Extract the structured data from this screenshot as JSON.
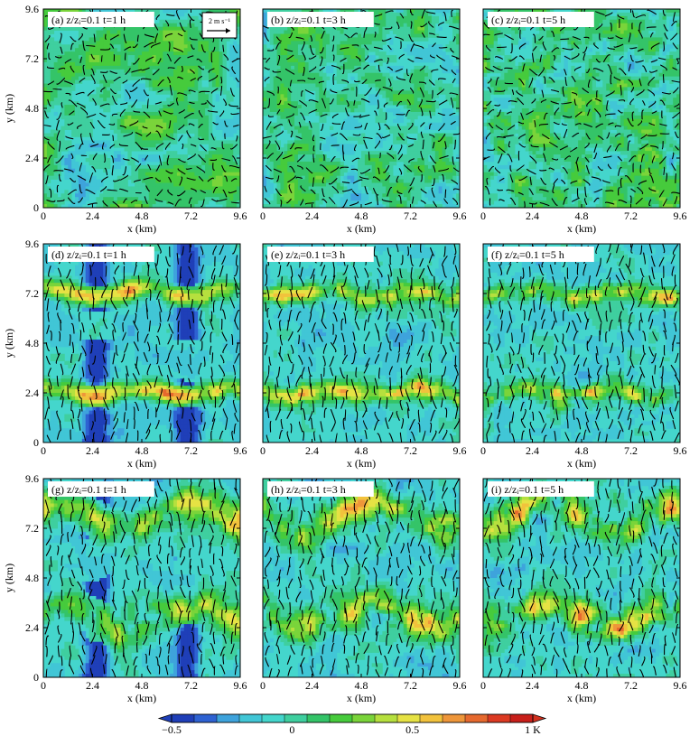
{
  "chart_data": [
    {
      "type": "heatmap",
      "panel_id": "(a)",
      "height_label": "z/zᵢ=0.1",
      "time_label": "t=1 h",
      "case": "uniform",
      "frame": 1,
      "xlabel": "x (km)",
      "ylabel": "y (km)",
      "xlim": [
        0,
        9.6
      ],
      "ylim": [
        0,
        9.6
      ],
      "xticks": [
        "0",
        "2.4",
        "4.8",
        "7.2",
        "9.6"
      ],
      "yticks": [
        "0",
        "2.4",
        "4.8",
        "7.2",
        "9.6"
      ],
      "reference_vector": "2 m s⁻¹"
    },
    {
      "type": "heatmap",
      "panel_id": "(b)",
      "height_label": "z/zᵢ=0.1",
      "time_label": "t=3 h",
      "case": "uniform",
      "frame": 3,
      "xlabel": "x (km)",
      "xlim": [
        0,
        9.6
      ],
      "ylim": [
        0,
        9.6
      ],
      "xticks": [
        "0",
        "2.4",
        "4.8",
        "7.2",
        "9.6"
      ]
    },
    {
      "type": "heatmap",
      "panel_id": "(c)",
      "height_label": "z/zᵢ=0.1",
      "time_label": "t=5 h",
      "case": "uniform",
      "frame": 5,
      "xlabel": "x (km)",
      "xlim": [
        0,
        9.6
      ],
      "ylim": [
        0,
        9.6
      ],
      "xticks": [
        "0",
        "2.4",
        "4.8",
        "7.2",
        "9.6"
      ]
    },
    {
      "type": "heatmap",
      "panel_id": "(d)",
      "height_label": "z/zᵢ=0.1",
      "time_label": "t=1 h",
      "case": "strong_bands",
      "frame": 1,
      "xlabel": "x (km)",
      "ylabel": "y (km)",
      "xlim": [
        0,
        9.6
      ],
      "ylim": [
        0,
        9.6
      ],
      "xticks": [
        "0",
        "2.4",
        "4.8",
        "7.2",
        "9.6"
      ],
      "yticks": [
        "0",
        "2.4",
        "4.8",
        "7.2",
        "9.6"
      ],
      "convergence_lines_y": [
        2.4,
        7.2
      ]
    },
    {
      "type": "heatmap",
      "panel_id": "(e)",
      "height_label": "z/zᵢ=0.1",
      "time_label": "t=3 h",
      "case": "strong_bands",
      "frame": 3,
      "xlabel": "x (km)",
      "xlim": [
        0,
        9.6
      ],
      "ylim": [
        0,
        9.6
      ],
      "xticks": [
        "0",
        "2.4",
        "4.8",
        "7.2",
        "9.6"
      ],
      "convergence_lines_y": [
        2.4,
        7.2
      ]
    },
    {
      "type": "heatmap",
      "panel_id": "(f)",
      "height_label": "z/zᵢ=0.1",
      "time_label": "t=5 h",
      "case": "strong_bands",
      "frame": 5,
      "xlabel": "x (km)",
      "xlim": [
        0,
        9.6
      ],
      "ylim": [
        0,
        9.6
      ],
      "xticks": [
        "0",
        "2.4",
        "4.8",
        "7.2",
        "9.6"
      ],
      "convergence_lines_y": [
        2.4,
        7.2
      ]
    },
    {
      "type": "heatmap",
      "panel_id": "(g)",
      "height_label": "z/zᵢ=0.1",
      "time_label": "t=1 h",
      "case": "weak_bands",
      "frame": 1,
      "xlabel": "x (km)",
      "ylabel": "y (km)",
      "xlim": [
        0,
        9.6
      ],
      "ylim": [
        0,
        9.6
      ],
      "xticks": [
        "0",
        "2.4",
        "4.8",
        "7.2",
        "9.6"
      ],
      "yticks": [
        "0",
        "2.4",
        "4.8",
        "7.2",
        "9.6"
      ],
      "convergence_lines_y": [
        3.0,
        7.8
      ]
    },
    {
      "type": "heatmap",
      "panel_id": "(h)",
      "height_label": "z/zᵢ=0.1",
      "time_label": "t=3 h",
      "case": "weak_bands",
      "frame": 3,
      "xlabel": "x (km)",
      "xlim": [
        0,
        9.6
      ],
      "ylim": [
        0,
        9.6
      ],
      "xticks": [
        "0",
        "2.4",
        "4.8",
        "7.2",
        "9.6"
      ],
      "convergence_lines_y": [
        3.0,
        7.8
      ]
    },
    {
      "type": "heatmap",
      "panel_id": "(i)",
      "height_label": "z/zᵢ=0.1",
      "time_label": "t=5 h",
      "case": "weak_bands",
      "frame": 5,
      "xlabel": "x (km)",
      "xlim": [
        0,
        9.6
      ],
      "ylim": [
        0,
        9.6
      ],
      "xticks": [
        "0",
        "2.4",
        "4.8",
        "7.2",
        "9.6"
      ],
      "convergence_lines_y": [
        3.0,
        7.8
      ]
    }
  ],
  "colorbar": {
    "range": [
      -0.5,
      1.0
    ],
    "unit": "K",
    "labels": [
      {
        "value": -0.5,
        "text": "−0.5"
      },
      {
        "value": 0,
        "text": "0"
      },
      {
        "value": 0.5,
        "text": "0.5"
      },
      {
        "value": 1.0,
        "text": "1 K"
      }
    ],
    "colors": [
      "#1f3fb8",
      "#2e62d2",
      "#3ea3dc",
      "#41c6d6",
      "#44d6cc",
      "#3fcf9f",
      "#34c468",
      "#46cb3c",
      "#7ad43a",
      "#b6e03e",
      "#e6e244",
      "#f2c23c",
      "#ee963a",
      "#e6692e",
      "#dc3a22",
      "#c81f1a"
    ],
    "extend_min_color": "#1f3fb8",
    "extend_max_color": "#d2301e"
  },
  "colors": {
    "background": "#ffffff",
    "vector": "#000000",
    "axis": "#000000"
  }
}
